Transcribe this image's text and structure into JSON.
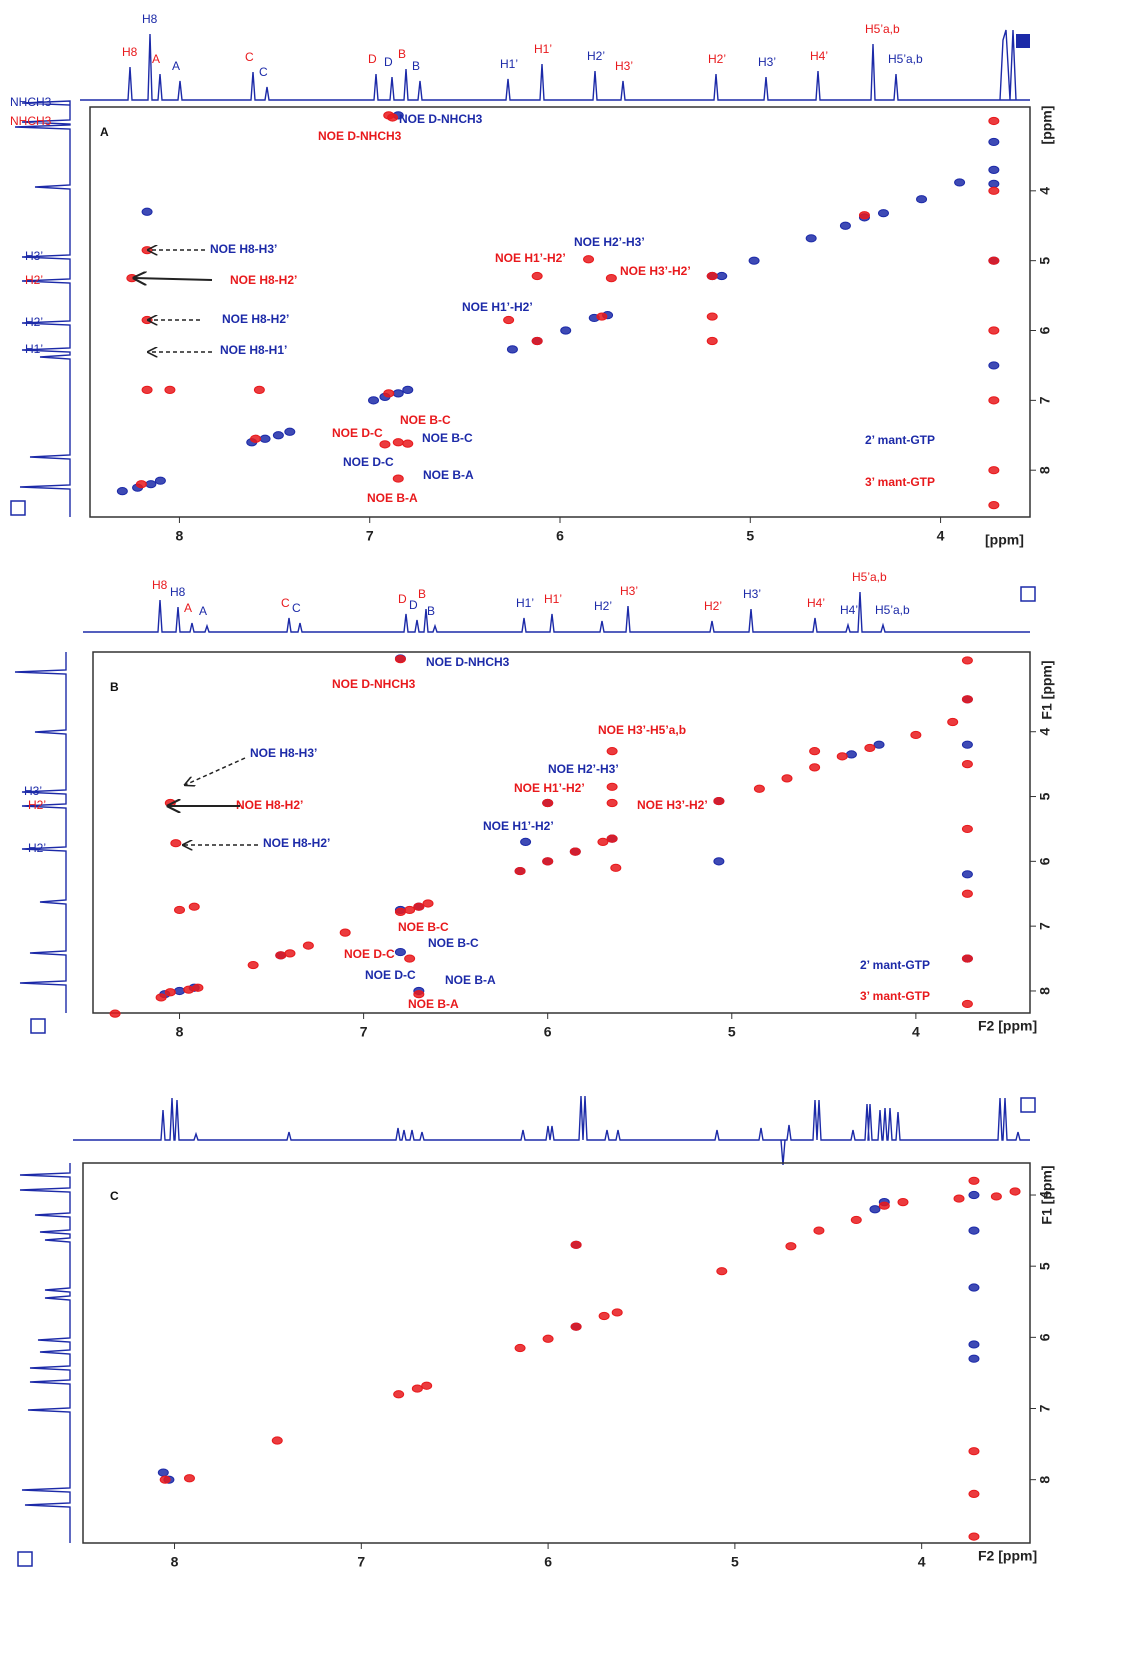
{
  "chart_data": [
    {
      "type": "scatter",
      "panel": "A",
      "xlabel": "[ppm]",
      "ylabel": "[ppm]",
      "xlim": [
        8.47,
        3.53
      ],
      "ylim": [
        2.8,
        8.67
      ],
      "xticks": [
        8,
        7,
        6,
        5,
        4
      ],
      "yticks": [
        4,
        5,
        6,
        7,
        8
      ],
      "series": [
        {
          "name": "2’ mant-GTP",
          "color": "#1c2aa8",
          "x": [
            8.3,
            8.22,
            8.15,
            8.1,
            7.62,
            7.55,
            7.48,
            7.42,
            6.98,
            6.92,
            6.85,
            6.8,
            6.25,
            6.12,
            5.97,
            5.82,
            5.75,
            5.2,
            5.15,
            4.98,
            4.68,
            4.5,
            4.4,
            4.3,
            4.1,
            3.9,
            8.17,
            6.85,
            3.72,
            3.72,
            3.72,
            3.72,
            3.72
          ],
          "y": [
            8.3,
            8.25,
            8.2,
            8.15,
            7.6,
            7.55,
            7.5,
            7.45,
            7.0,
            6.95,
            6.9,
            6.85,
            6.27,
            6.15,
            6.0,
            5.82,
            5.78,
            5.22,
            5.22,
            5.0,
            4.68,
            4.5,
            4.38,
            4.32,
            4.12,
            3.88,
            4.3,
            2.92,
            3.3,
            3.7,
            3.9,
            5.0,
            6.5
          ]
        },
        {
          "name": "3’ mant-GTP",
          "color": "#e8191c",
          "x": [
            8.25,
            8.17,
            8.17,
            8.17,
            8.05,
            6.12,
            5.85,
            5.73,
            6.27,
            5.2,
            5.2,
            7.58,
            6.85,
            6.8,
            6.92,
            6.85,
            6.9,
            6.88,
            8.2,
            7.6,
            6.9,
            6.12,
            5.78,
            5.2,
            4.4,
            3.72,
            3.72,
            3.72,
            3.72,
            3.72,
            3.72,
            3.72
          ],
          "y": [
            5.25,
            4.85,
            6.85,
            5.85,
            6.85,
            5.22,
            4.98,
            5.25,
            5.85,
            5.8,
            6.15,
            6.85,
            7.6,
            7.62,
            7.63,
            8.12,
            2.92,
            2.95,
            8.2,
            7.55,
            6.9,
            6.15,
            5.8,
            5.22,
            4.35,
            3.0,
            4.0,
            5.0,
            6.0,
            7.0,
            8.0,
            8.5
          ]
        }
      ],
      "spectrum_labels_top": [
        {
          "text": "H8",
          "color": "#e8191c"
        },
        {
          "text": "H8",
          "color": "#1c2aa8"
        },
        {
          "text": "A",
          "color": "#e8191c"
        },
        {
          "text": "A",
          "color": "#1c2aa8"
        },
        {
          "text": "C",
          "color": "#e8191c"
        },
        {
          "text": "C",
          "color": "#1c2aa8"
        },
        {
          "text": "D",
          "color": "#e8191c"
        },
        {
          "text": "D",
          "color": "#1c2aa8"
        },
        {
          "text": "B",
          "color": "#e8191c"
        },
        {
          "text": "B",
          "color": "#1c2aa8"
        },
        {
          "text": "H1’",
          "color": "#1c2aa8"
        },
        {
          "text": "H1’",
          "color": "#e8191c"
        },
        {
          "text": "H2’",
          "color": "#1c2aa8"
        },
        {
          "text": "H3’",
          "color": "#e8191c"
        },
        {
          "text": "H2’",
          "color": "#e8191c"
        },
        {
          "text": "H3’",
          "color": "#1c2aa8"
        },
        {
          "text": "H4’",
          "color": "#e8191c"
        },
        {
          "text": "H5’a,b",
          "color": "#e8191c"
        },
        {
          "text": "H5’a,b",
          "color": "#1c2aa8"
        }
      ],
      "spectrum_labels_left": [
        {
          "text": "NHCH3",
          "color": "#1c2aa8"
        },
        {
          "text": "NHCH3",
          "color": "#e8191c"
        },
        {
          "text": "H3’",
          "color": "#1c2aa8"
        },
        {
          "text": "H2’",
          "color": "#e8191c"
        },
        {
          "text": "H2’",
          "color": "#1c2aa8"
        },
        {
          "text": "H1’",
          "color": "#1c2aa8"
        }
      ],
      "annotations": [
        {
          "text": "NOE D-NHCH3",
          "color": "#1c2aa8"
        },
        {
          "text": "NOE D-NHCH3",
          "color": "#e8191c"
        },
        {
          "text": "NOE H8-H3’",
          "color": "#1c2aa8"
        },
        {
          "text": "NOE H8-H2’",
          "color": "#e8191c"
        },
        {
          "text": "NOE H8-H2’",
          "color": "#1c2aa8"
        },
        {
          "text": "NOE H8-H1’",
          "color": "#1c2aa8"
        },
        {
          "text": "NOE H2’-H3’",
          "color": "#1c2aa8"
        },
        {
          "text": "NOE H1’-H2’",
          "color": "#e8191c"
        },
        {
          "text": "NOE H3’-H2’",
          "color": "#e8191c"
        },
        {
          "text": "NOE H1’-H2’",
          "color": "#1c2aa8"
        },
        {
          "text": "NOE B-C",
          "color": "#e8191c"
        },
        {
          "text": "NOE D-C",
          "color": "#e8191c"
        },
        {
          "text": "NOE B-C",
          "color": "#1c2aa8"
        },
        {
          "text": "NOE D-C",
          "color": "#1c2aa8"
        },
        {
          "text": "NOE B-A",
          "color": "#1c2aa8"
        },
        {
          "text": "NOE B-A",
          "color": "#e8191c"
        }
      ]
    },
    {
      "type": "scatter",
      "panel": "B",
      "xlabel": "F2 [ppm]",
      "ylabel": "F1 [ppm]",
      "xlim": [
        8.47,
        3.38
      ],
      "ylim": [
        2.77,
        8.34
      ],
      "xticks": [
        8,
        7,
        6,
        5,
        4
      ],
      "yticks": [
        4,
        5,
        6,
        7,
        8
      ],
      "series": [
        {
          "name": "2’ mant-GTP",
          "color": "#1c2aa8",
          "x": [
            8.08,
            8.0,
            7.92,
            7.45,
            6.8,
            6.7,
            6.15,
            6.0,
            5.85,
            5.65,
            5.07,
            4.35,
            4.2,
            6.8,
            6.0,
            6.12,
            5.07,
            6.8,
            6.7,
            3.72,
            3.72,
            3.72,
            3.72
          ],
          "y": [
            8.05,
            8.0,
            7.95,
            7.45,
            6.75,
            6.7,
            6.15,
            6.0,
            5.85,
            5.65,
            5.07,
            4.35,
            4.2,
            2.87,
            5.1,
            5.7,
            6.0,
            7.4,
            8.0,
            3.5,
            4.2,
            6.2,
            7.5
          ]
        },
        {
          "name": "3’ mant-GTP",
          "color": "#e8191c",
          "x": [
            8.35,
            8.1,
            8.05,
            7.95,
            7.9,
            7.6,
            7.45,
            7.4,
            7.3,
            7.1,
            6.8,
            6.75,
            6.7,
            6.65,
            6.15,
            6.0,
            5.85,
            5.7,
            5.65,
            5.07,
            4.85,
            4.7,
            4.55,
            4.4,
            4.25,
            4.0,
            3.8,
            8.05,
            8.02,
            8.0,
            7.92,
            6.8,
            5.65,
            5.65,
            5.65,
            6.0,
            5.63,
            4.55,
            6.75,
            6.7,
            3.72,
            3.72,
            3.72,
            3.72,
            3.72,
            3.72,
            3.72
          ],
          "y": [
            8.35,
            8.1,
            8.02,
            7.98,
            7.95,
            7.6,
            7.45,
            7.42,
            7.3,
            7.1,
            6.78,
            6.75,
            6.7,
            6.65,
            6.15,
            6.0,
            5.85,
            5.7,
            5.65,
            5.07,
            4.88,
            4.72,
            4.55,
            4.38,
            4.25,
            4.05,
            3.85,
            5.1,
            5.72,
            6.75,
            6.7,
            2.88,
            4.3,
            4.85,
            5.1,
            5.1,
            6.1,
            4.3,
            7.5,
            8.05,
            2.9,
            3.5,
            4.5,
            5.5,
            6.5,
            7.5,
            8.2
          ]
        }
      ],
      "spectrum_labels_top": [
        {
          "text": "H8",
          "color": "#e8191c"
        },
        {
          "text": "H8",
          "color": "#1c2aa8"
        },
        {
          "text": "A",
          "color": "#e8191c"
        },
        {
          "text": "A",
          "color": "#1c2aa8"
        },
        {
          "text": "C",
          "color": "#e8191c"
        },
        {
          "text": "C",
          "color": "#1c2aa8"
        },
        {
          "text": "D",
          "color": "#e8191c"
        },
        {
          "text": "D",
          "color": "#1c2aa8"
        },
        {
          "text": "B",
          "color": "#e8191c"
        },
        {
          "text": "B",
          "color": "#1c2aa8"
        },
        {
          "text": "H1’",
          "color": "#1c2aa8"
        },
        {
          "text": "H1’",
          "color": "#e8191c"
        },
        {
          "text": "H2’",
          "color": "#1c2aa8"
        },
        {
          "text": "H3’",
          "color": "#e8191c"
        },
        {
          "text": "H2’",
          "color": "#e8191c"
        },
        {
          "text": "H3’",
          "color": "#1c2aa8"
        },
        {
          "text": "H4’",
          "color": "#e8191c"
        },
        {
          "text": "H4’",
          "color": "#1c2aa8"
        },
        {
          "text": "H5’a,b",
          "color": "#e8191c"
        },
        {
          "text": "H5’a,b",
          "color": "#1c2aa8"
        }
      ],
      "spectrum_labels_left": [
        {
          "text": "H3’",
          "color": "#1c2aa8"
        },
        {
          "text": "H2’",
          "color": "#e8191c"
        },
        {
          "text": "H2’",
          "color": "#1c2aa8"
        }
      ],
      "annotations": [
        {
          "text": "NOE D-NHCH3",
          "color": "#1c2aa8"
        },
        {
          "text": "NOE D-NHCH3",
          "color": "#e8191c"
        },
        {
          "text": "NOE H3’-H5’a,b",
          "color": "#e8191c"
        },
        {
          "text": "NOE H8-H3’",
          "color": "#1c2aa8"
        },
        {
          "text": "NOE H2’-H3’",
          "color": "#1c2aa8"
        },
        {
          "text": "NOE H1’-H2’",
          "color": "#e8191c"
        },
        {
          "text": "NOE H8-H2’",
          "color": "#e8191c"
        },
        {
          "text": "NOE H3’-H2’",
          "color": "#e8191c"
        },
        {
          "text": "NOE H1’-H2’",
          "color": "#1c2aa8"
        },
        {
          "text": "NOE H8-H2’",
          "color": "#1c2aa8"
        },
        {
          "text": "NOE B-C",
          "color": "#e8191c"
        },
        {
          "text": "NOE B-C",
          "color": "#1c2aa8"
        },
        {
          "text": "NOE D-C",
          "color": "#e8191c"
        },
        {
          "text": "NOE D-C",
          "color": "#1c2aa8"
        },
        {
          "text": "NOE B-A",
          "color": "#1c2aa8"
        },
        {
          "text": "NOE B-A",
          "color": "#e8191c"
        }
      ]
    },
    {
      "type": "scatter",
      "panel": "C",
      "xlabel": "F2 [ppm]",
      "ylabel": "F1 [ppm]",
      "xlim": [
        8.49,
        3.42
      ],
      "ylim": [
        3.55,
        8.89
      ],
      "xticks": [
        8,
        7,
        6,
        5,
        4
      ],
      "yticks": [
        4,
        5,
        6,
        7,
        8
      ],
      "series": [
        {
          "color": "#1c2aa8",
          "x": [
            8.03,
            8.06,
            5.85,
            5.85,
            4.2,
            4.25,
            3.72,
            3.72,
            3.72,
            3.72,
            3.72
          ],
          "y": [
            8.0,
            7.9,
            4.7,
            5.85,
            4.1,
            4.2,
            4.0,
            4.5,
            5.3,
            6.1,
            6.3
          ]
        },
        {
          "color": "#e8191c",
          "x": [
            8.05,
            7.92,
            7.45,
            6.8,
            6.7,
            6.65,
            6.15,
            6.0,
            5.85,
            5.7,
            5.63,
            5.07,
            4.7,
            4.55,
            4.35,
            4.2,
            4.1,
            3.6,
            3.8,
            3.5,
            3.72,
            3.72,
            3.72,
            3.72,
            5.85
          ],
          "y": [
            8.0,
            7.98,
            7.45,
            6.8,
            6.72,
            6.68,
            6.15,
            6.02,
            5.85,
            5.7,
            5.65,
            5.07,
            4.72,
            4.5,
            4.35,
            4.15,
            4.1,
            4.02,
            4.05,
            3.95,
            8.8,
            8.2,
            7.6,
            3.8,
            4.7
          ]
        }
      ]
    }
  ]
}
